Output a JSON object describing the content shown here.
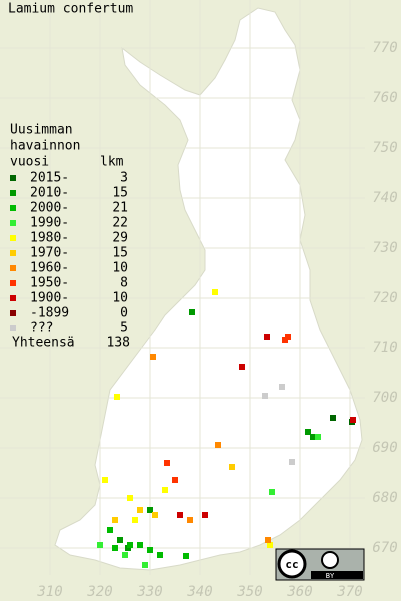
{
  "title": "Lamium confertum",
  "legend": {
    "heading": [
      "Uusimman",
      "havainnon",
      "vuosi"
    ],
    "count_heading": "lkm",
    "items": [
      {
        "label": "2015-",
        "count": 3,
        "color": "#006600"
      },
      {
        "label": "2010-",
        "count": 15,
        "color": "#009900"
      },
      {
        "label": "2000-",
        "count": 21,
        "color": "#00bb00"
      },
      {
        "label": "1990-",
        "count": 22,
        "color": "#33ee33"
      },
      {
        "label": "1980-",
        "count": 29,
        "color": "#ffff00"
      },
      {
        "label": "1970-",
        "count": 15,
        "color": "#ffcc00"
      },
      {
        "label": "1960-",
        "count": 10,
        "color": "#ff8800"
      },
      {
        "label": "1950-",
        "count": 8,
        "color": "#ff3300"
      },
      {
        "label": "1900-",
        "count": 10,
        "color": "#cc0000"
      },
      {
        "label": "-1899",
        "count": 0,
        "color": "#880000"
      },
      {
        "label": "???",
        "count": 5,
        "color": "#cccccc"
      }
    ],
    "total_label": "Yhteensä",
    "total": 138
  },
  "grid": {
    "xticks": [
      310,
      320,
      330,
      340,
      350,
      360,
      370
    ],
    "yticks": [
      770,
      760,
      750,
      740,
      730,
      720,
      710,
      700,
      690,
      680,
      670
    ]
  },
  "license": {
    "cc": "cc",
    "by": "BY"
  }
}
